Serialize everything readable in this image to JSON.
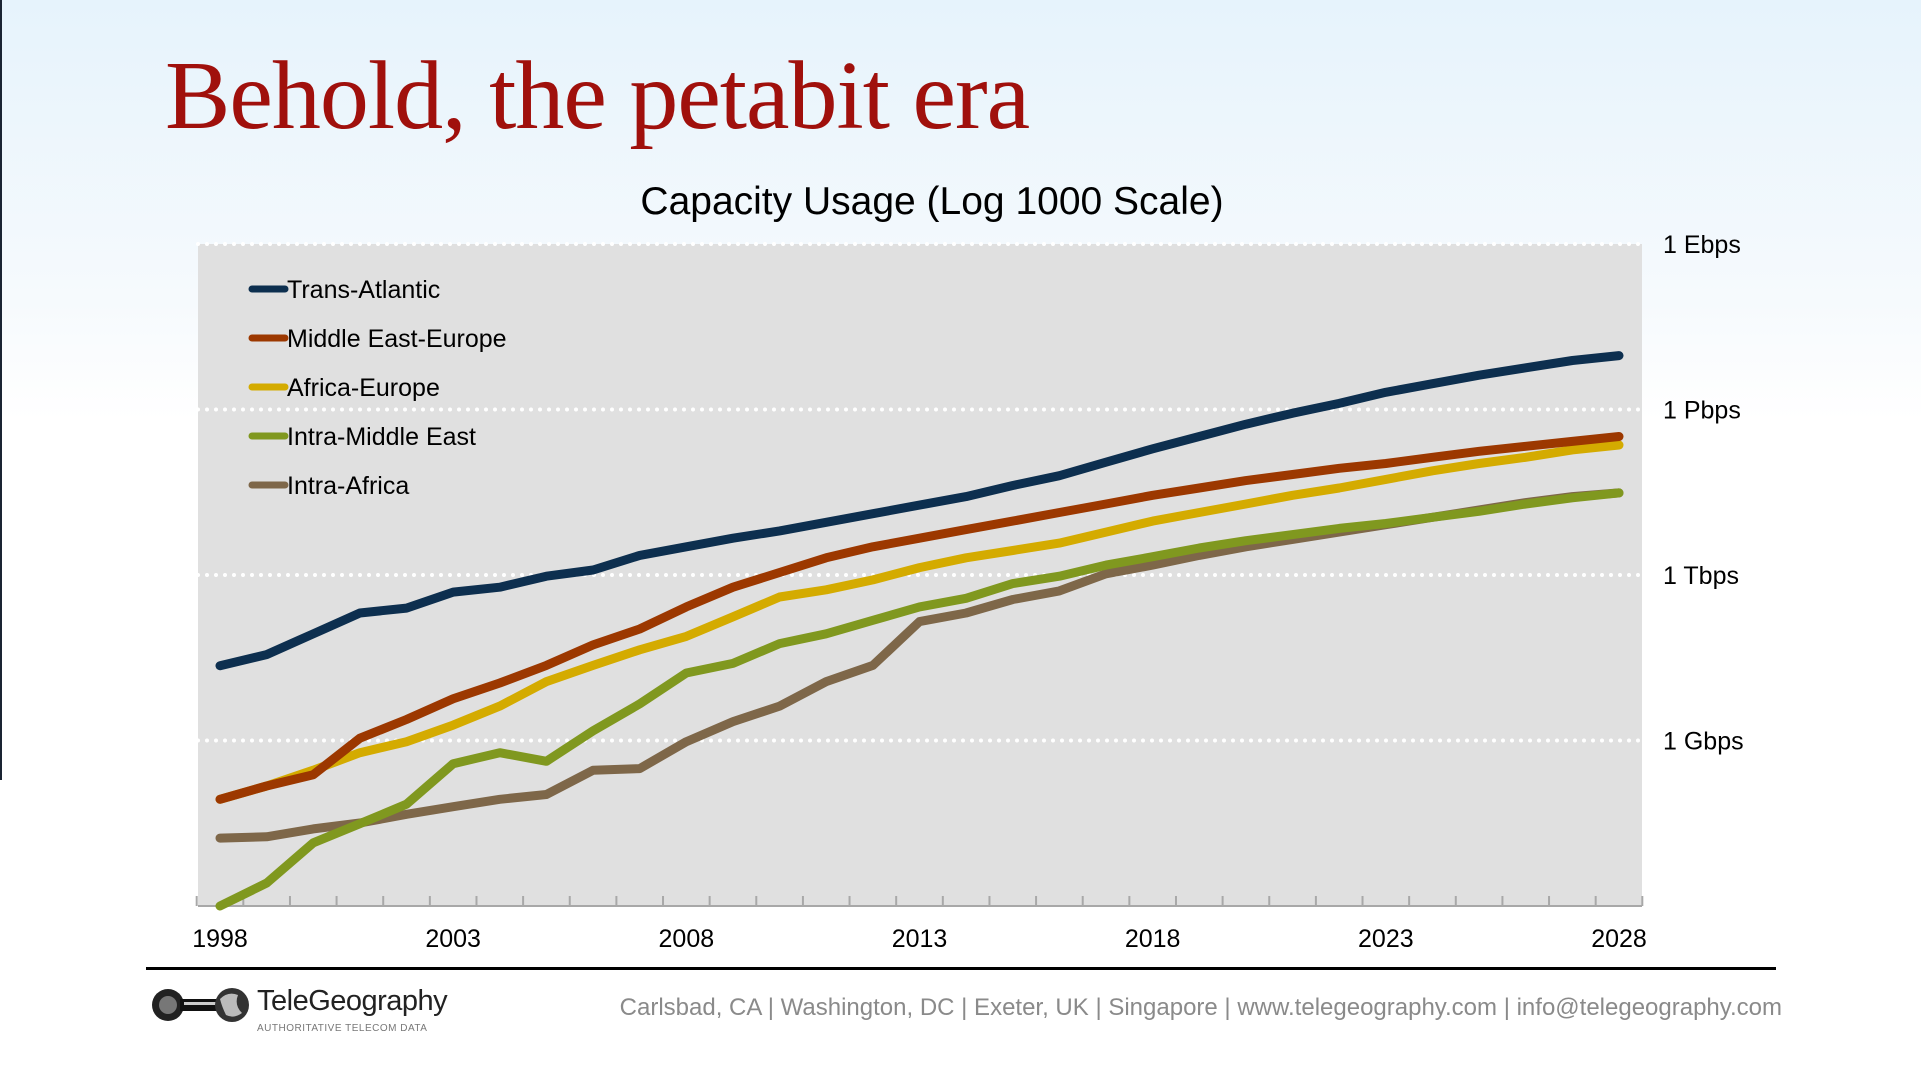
{
  "slide": {
    "title": "Behold, the petabit era",
    "footer_text": "Carlsbad, CA | Washington, DC | Exeter, UK | Singapore | www.telegeography.com | info@telegeography.com",
    "logo": {
      "name": "TeleGeography",
      "tagline": "AUTHORITATIVE TELECOM DATA",
      "icon": "telephone-globe-icon"
    }
  },
  "chart_data": {
    "type": "line",
    "title": "Capacity Usage (Log 1000 Scale)",
    "xlabel": "",
    "ylabel": "",
    "y_unit": "Gbps",
    "y_scale": "log",
    "ylim": [
      0.001,
      1000000000
    ],
    "xlim": [
      1998,
      2028
    ],
    "x_tick_labels": [
      "1998",
      "2003",
      "2008",
      "2013",
      "2018",
      "2023",
      "2028"
    ],
    "y_ticks": [
      {
        "value": 1,
        "label": "1 Gbps"
      },
      {
        "value": 1000,
        "label": "1 Tbps"
      },
      {
        "value": 1000000,
        "label": "1 Pbps"
      },
      {
        "value": 1000000000,
        "label": "1 Ebps"
      }
    ],
    "grid": "horizontal dotted",
    "legend_position": "top-left",
    "background": "#e0e0e0",
    "x": [
      1998,
      1999,
      2000,
      2001,
      2002,
      2003,
      2004,
      2005,
      2006,
      2007,
      2008,
      2009,
      2010,
      2011,
      2012,
      2013,
      2014,
      2015,
      2016,
      2017,
      2018,
      2019,
      2020,
      2021,
      2022,
      2023,
      2024,
      2025,
      2026,
      2027,
      2028
    ],
    "series": [
      {
        "name": "Trans-Atlantic",
        "color": "#0d2f4f",
        "values": [
          22.7,
          36,
          86,
          205,
          251,
          489,
          600,
          950,
          1230,
          2270,
          3240,
          4640,
          6310,
          9030,
          12900,
          18500,
          26400,
          41900,
          63100,
          111000,
          194000,
          324000,
          541000,
          858000,
          1290000,
          2050000,
          2930000,
          4190000,
          5700000,
          7740000,
          9500000
        ]
      },
      {
        "name": "Middle East-Europe",
        "color": "#9c3800",
        "values": [
          0.086,
          0.15,
          0.24,
          1.1,
          2.4,
          5.7,
          11,
          23,
          54,
          105,
          264,
          600,
          1110,
          2050,
          3240,
          4640,
          6640,
          9500,
          13600,
          19400,
          27800,
          37800,
          51400,
          66400,
          85800,
          105000,
          136000,
          175000,
          215000,
          264000,
          324000
        ]
      },
      {
        "name": "Africa-Europe",
        "color": "#d4ab00",
        "values": [
          0.086,
          0.15,
          0.29,
          0.6,
          0.95,
          1.9,
          4.2,
          11.7,
          23,
          44,
          77,
          175,
          400,
          540,
          815,
          1360,
          2050,
          2780,
          3780,
          6000,
          9500,
          13600,
          19400,
          27800,
          37800,
          54100,
          77400,
          105000,
          136000,
          185000,
          227000
        ]
      },
      {
        "name": "Intra-Middle East",
        "color": "#80981f",
        "values": [
          0.001,
          0.0026,
          0.014,
          0.031,
          0.07,
          0.38,
          0.6,
          0.42,
          1.5,
          4.6,
          16.7,
          25,
          57,
          86,
          151,
          264,
          378,
          699,
          950,
          1510,
          2150,
          3080,
          4190,
          5410,
          6980,
          8580,
          11100,
          14300,
          19400,
          25100,
          30800
        ]
      },
      {
        "name": "Intra-Africa",
        "color": "#7e6749",
        "values": [
          0.017,
          0.018,
          0.025,
          0.032,
          0.046,
          0.063,
          0.086,
          0.105,
          0.29,
          0.31,
          0.95,
          2.2,
          4.2,
          11.7,
          23,
          143,
          205,
          359,
          514,
          1050,
          1510,
          2270,
          3240,
          4410,
          6000,
          8150,
          11100,
          15100,
          20500,
          26400,
          30800
        ]
      }
    ]
  }
}
